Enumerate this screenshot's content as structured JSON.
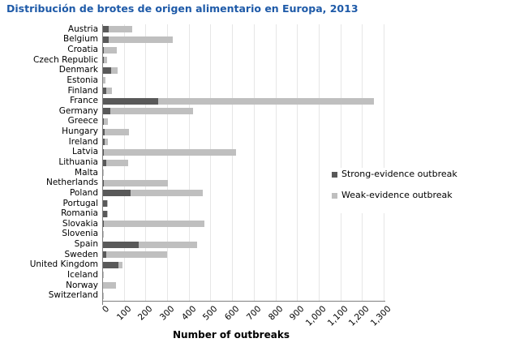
{
  "title": "Distribución de brotes de origen alimentario en Europa, 2013",
  "xlabel": "Number of outbreaks",
  "colors": {
    "title_blue": "#1E5AA8",
    "strong_gray": "#595959",
    "weak_gray": "#BFBFBF",
    "axis_gray": "#808080",
    "grid_gray": "#E6E6E6"
  },
  "legend": {
    "entries": [
      "Strong-evidence outbreak",
      "Weak-evidence outbreak"
    ]
  },
  "chart_data": {
    "type": "bar",
    "orientation": "horizontal",
    "stacked": true,
    "title": "Distribución de brotes de origen alimentario en Europa, 2013",
    "xlabel": "Number of outbreaks",
    "ylabel": "",
    "xlim": [
      0,
      1300
    ],
    "grid": "vertical",
    "legend_position": "center-right",
    "xtick_labels": [
      "0",
      "100",
      "200",
      "300",
      "400",
      "500",
      "600",
      "700",
      "800",
      "900",
      "1,000",
      "1,100",
      "1,200",
      "1,300"
    ],
    "categories": [
      "Austria",
      "Belgium",
      "Croatia",
      "Czech Republic",
      "Denmark",
      "Estonia",
      "Finland",
      "France",
      "Germany",
      "Greece",
      "Hungary",
      "Ireland",
      "Latvia",
      "Lithuania",
      "Malta",
      "Netherlands",
      "Poland",
      "Portugal",
      "Romania",
      "Slovakia",
      "Slovenia",
      "Spain",
      "Sweden",
      "United Kingdom",
      "Iceland",
      "Norway",
      "Switzerland"
    ],
    "series": [
      {
        "name": "Strong-evidence outbreak",
        "color": "#595959",
        "values": [
          25,
          26,
          5,
          3,
          38,
          1,
          15,
          255,
          32,
          2,
          9,
          6,
          5,
          15,
          1,
          5,
          127,
          20,
          20,
          4,
          1,
          165,
          15,
          70,
          0,
          1,
          0
        ]
      },
      {
        "name": "Weak-evidence outbreak",
        "color": "#BFBFBF",
        "values": [
          110,
          295,
          57,
          17,
          30,
          11,
          27,
          995,
          385,
          22,
          112,
          18,
          610,
          102,
          2,
          295,
          332,
          3,
          2,
          466,
          2,
          268,
          280,
          20,
          1,
          59,
          3
        ]
      }
    ]
  }
}
